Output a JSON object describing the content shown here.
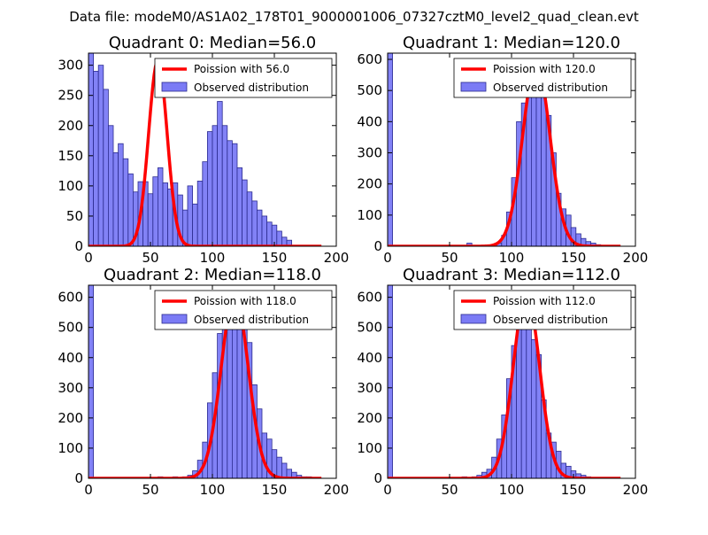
{
  "figure": {
    "suptitle": "Data file: modeM0/AS1A02_178T01_9000001006_07327cztM0_level2_quad_clean.evt",
    "colors": {
      "hist_fill": "#7b7bf5",
      "hist_edge": "#2c2c90",
      "line": "#ff0000",
      "axes": "#000000",
      "background": "#ffffff"
    }
  },
  "chart_data": [
    {
      "type": "bar",
      "title": "Quadrant 0: Median=56.0",
      "xlabel": "",
      "ylabel": "",
      "xlim": [
        0,
        200
      ],
      "ylim": [
        0,
        320
      ],
      "xticks": [
        0,
        50,
        100,
        150,
        200
      ],
      "yticks": [
        0,
        50,
        100,
        150,
        200,
        250,
        300
      ],
      "legend": {
        "position": "upper-right",
        "line_label": "Poission with 56.0",
        "bar_label": "Observed distribution"
      },
      "series": [
        {
          "name": "Observed distribution",
          "kind": "hist",
          "bin_width": 4,
          "bin_starts": [
            0,
            4,
            8,
            12,
            16,
            20,
            24,
            28,
            32,
            36,
            40,
            44,
            48,
            52,
            56,
            60,
            64,
            68,
            72,
            76,
            80,
            84,
            88,
            92,
            96,
            100,
            104,
            108,
            112,
            116,
            120,
            124,
            128,
            132,
            136,
            140,
            144,
            148,
            152,
            156,
            160
          ],
          "values": [
            320,
            290,
            300,
            260,
            200,
            155,
            170,
            145,
            120,
            90,
            107,
            107,
            87,
            115,
            130,
            105,
            95,
            105,
            85,
            60,
            100,
            70,
            108,
            140,
            190,
            200,
            240,
            200,
            175,
            170,
            130,
            110,
            90,
            75,
            60,
            50,
            40,
            35,
            25,
            15,
            10
          ]
        },
        {
          "name": "Poission with 56.0",
          "kind": "line",
          "mean": 56.0,
          "amplitude": 308
        }
      ]
    },
    {
      "type": "bar",
      "title": "Quadrant 1: Median=120.0",
      "xlabel": "",
      "ylabel": "",
      "xlim": [
        0,
        200
      ],
      "ylim": [
        0,
        620
      ],
      "xticks": [
        0,
        50,
        100,
        150,
        200
      ],
      "yticks": [
        0,
        100,
        200,
        300,
        400,
        500,
        600
      ],
      "legend": {
        "position": "upper-right",
        "line_label": "Poission with 120.0",
        "bar_label": "Observed distribution"
      },
      "series": [
        {
          "name": "Observed distribution",
          "kind": "hist",
          "bin_width": 4,
          "bin_starts": [
            0,
            64,
            88,
            92,
            96,
            100,
            104,
            108,
            112,
            116,
            120,
            124,
            128,
            132,
            136,
            140,
            144,
            148,
            152,
            156,
            160,
            164,
            168
          ],
          "values": [
            620,
            10,
            10,
            35,
            110,
            220,
            400,
            460,
            540,
            590,
            530,
            560,
            420,
            300,
            170,
            120,
            100,
            60,
            40,
            25,
            15,
            10,
            5
          ]
        },
        {
          "name": "Poission with 120.0",
          "kind": "line",
          "mean": 120.0,
          "amplitude": 590
        }
      ]
    },
    {
      "type": "bar",
      "title": "Quadrant 2: Median=118.0",
      "xlabel": "",
      "ylabel": "",
      "xlim": [
        0,
        200
      ],
      "ylim": [
        0,
        640
      ],
      "xticks": [
        0,
        50,
        100,
        150,
        200
      ],
      "yticks": [
        0,
        100,
        200,
        300,
        400,
        500,
        600
      ],
      "legend": {
        "position": "upper-right",
        "line_label": "Poission with 118.0",
        "bar_label": "Observed distribution"
      },
      "series": [
        {
          "name": "Observed distribution",
          "kind": "hist",
          "bin_width": 4,
          "bin_starts": [
            0,
            56,
            68,
            76,
            80,
            84,
            88,
            92,
            96,
            100,
            104,
            108,
            112,
            116,
            120,
            124,
            128,
            132,
            136,
            140,
            144,
            148,
            152,
            156,
            160,
            164,
            168,
            172,
            176,
            180
          ],
          "values": [
            640,
            5,
            5,
            5,
            10,
            25,
            60,
            120,
            250,
            350,
            480,
            520,
            560,
            600,
            620,
            540,
            450,
            310,
            230,
            150,
            130,
            95,
            70,
            50,
            30,
            20,
            10,
            5,
            5,
            3
          ]
        },
        {
          "name": "Poission with 118.0",
          "kind": "line",
          "mean": 118.0,
          "amplitude": 610
        }
      ]
    },
    {
      "type": "bar",
      "title": "Quadrant 3: Median=112.0",
      "xlabel": "",
      "ylabel": "",
      "xlim": [
        0,
        200
      ],
      "ylim": [
        0,
        640
      ],
      "xticks": [
        0,
        50,
        100,
        150,
        200
      ],
      "yticks": [
        0,
        100,
        200,
        300,
        400,
        500,
        600
      ],
      "legend": {
        "position": "upper-right",
        "line_label": "Poission with 112.0",
        "bar_label": "Observed distribution"
      },
      "series": [
        {
          "name": "Observed distribution",
          "kind": "hist",
          "bin_width": 4,
          "bin_starts": [
            0,
            60,
            68,
            72,
            76,
            80,
            84,
            88,
            92,
            96,
            100,
            104,
            108,
            112,
            116,
            120,
            124,
            128,
            132,
            136,
            140,
            144,
            148,
            152,
            156,
            160,
            164
          ],
          "values": [
            640,
            5,
            5,
            10,
            20,
            30,
            70,
            130,
            210,
            330,
            440,
            570,
            620,
            580,
            460,
            410,
            260,
            150,
            120,
            90,
            50,
            40,
            25,
            15,
            10,
            5,
            3
          ]
        },
        {
          "name": "Poission with 112.0",
          "kind": "line",
          "mean": 112.0,
          "amplitude": 615
        }
      ]
    }
  ]
}
